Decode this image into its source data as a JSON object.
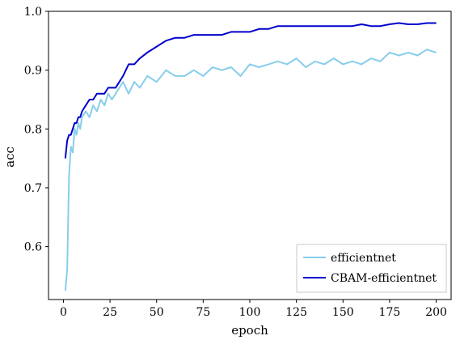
{
  "chart_data": {
    "type": "line",
    "title": "",
    "xlabel": "epoch",
    "ylabel": "acc",
    "xlim": [
      -8,
      208
    ],
    "ylim": [
      0.51,
      1.0
    ],
    "xticks": [
      0,
      25,
      50,
      75,
      100,
      125,
      150,
      175,
      200
    ],
    "yticks": [
      0.6,
      0.7,
      0.8,
      0.9,
      1.0
    ],
    "ytick_labels": [
      "0.6",
      "0.7",
      "0.8",
      "0.9",
      "1.0"
    ],
    "grid": false,
    "legend_position": "lower-right",
    "series": [
      {
        "name": "efficientnet",
        "color": "#87ceeb",
        "x": [
          1,
          2,
          3,
          4,
          5,
          6,
          7,
          8,
          9,
          10,
          12,
          14,
          16,
          18,
          20,
          22,
          24,
          26,
          28,
          30,
          32,
          35,
          38,
          41,
          45,
          50,
          55,
          60,
          65,
          70,
          75,
          80,
          85,
          90,
          95,
          100,
          105,
          110,
          115,
          120,
          125,
          130,
          135,
          140,
          145,
          150,
          155,
          160,
          165,
          170,
          175,
          180,
          185,
          190,
          195,
          200
        ],
        "y": [
          0.525,
          0.56,
          0.72,
          0.77,
          0.76,
          0.8,
          0.79,
          0.81,
          0.8,
          0.82,
          0.83,
          0.82,
          0.84,
          0.83,
          0.85,
          0.84,
          0.86,
          0.85,
          0.86,
          0.87,
          0.88,
          0.86,
          0.88,
          0.87,
          0.89,
          0.88,
          0.9,
          0.89,
          0.89,
          0.9,
          0.89,
          0.905,
          0.9,
          0.905,
          0.89,
          0.91,
          0.905,
          0.91,
          0.915,
          0.91,
          0.92,
          0.905,
          0.915,
          0.91,
          0.92,
          0.91,
          0.915,
          0.91,
          0.92,
          0.915,
          0.93,
          0.925,
          0.93,
          0.925,
          0.935,
          0.93
        ]
      },
      {
        "name": "CBAM-efficientnet",
        "color": "#0000cd",
        "x": [
          1,
          2,
          3,
          4,
          5,
          6,
          7,
          8,
          9,
          10,
          12,
          14,
          16,
          18,
          20,
          22,
          24,
          26,
          28,
          30,
          32,
          35,
          38,
          41,
          45,
          50,
          55,
          60,
          65,
          70,
          75,
          80,
          85,
          90,
          95,
          100,
          105,
          110,
          115,
          120,
          125,
          130,
          135,
          140,
          145,
          150,
          155,
          160,
          165,
          170,
          175,
          180,
          185,
          190,
          195,
          200
        ],
        "y": [
          0.75,
          0.78,
          0.79,
          0.79,
          0.8,
          0.81,
          0.81,
          0.82,
          0.82,
          0.83,
          0.84,
          0.85,
          0.85,
          0.86,
          0.86,
          0.86,
          0.87,
          0.87,
          0.87,
          0.88,
          0.89,
          0.91,
          0.91,
          0.92,
          0.93,
          0.94,
          0.95,
          0.955,
          0.955,
          0.96,
          0.96,
          0.96,
          0.96,
          0.965,
          0.965,
          0.965,
          0.97,
          0.97,
          0.975,
          0.975,
          0.975,
          0.975,
          0.975,
          0.975,
          0.975,
          0.975,
          0.975,
          0.978,
          0.975,
          0.975,
          0.978,
          0.98,
          0.978,
          0.978,
          0.98,
          0.98
        ]
      }
    ]
  }
}
